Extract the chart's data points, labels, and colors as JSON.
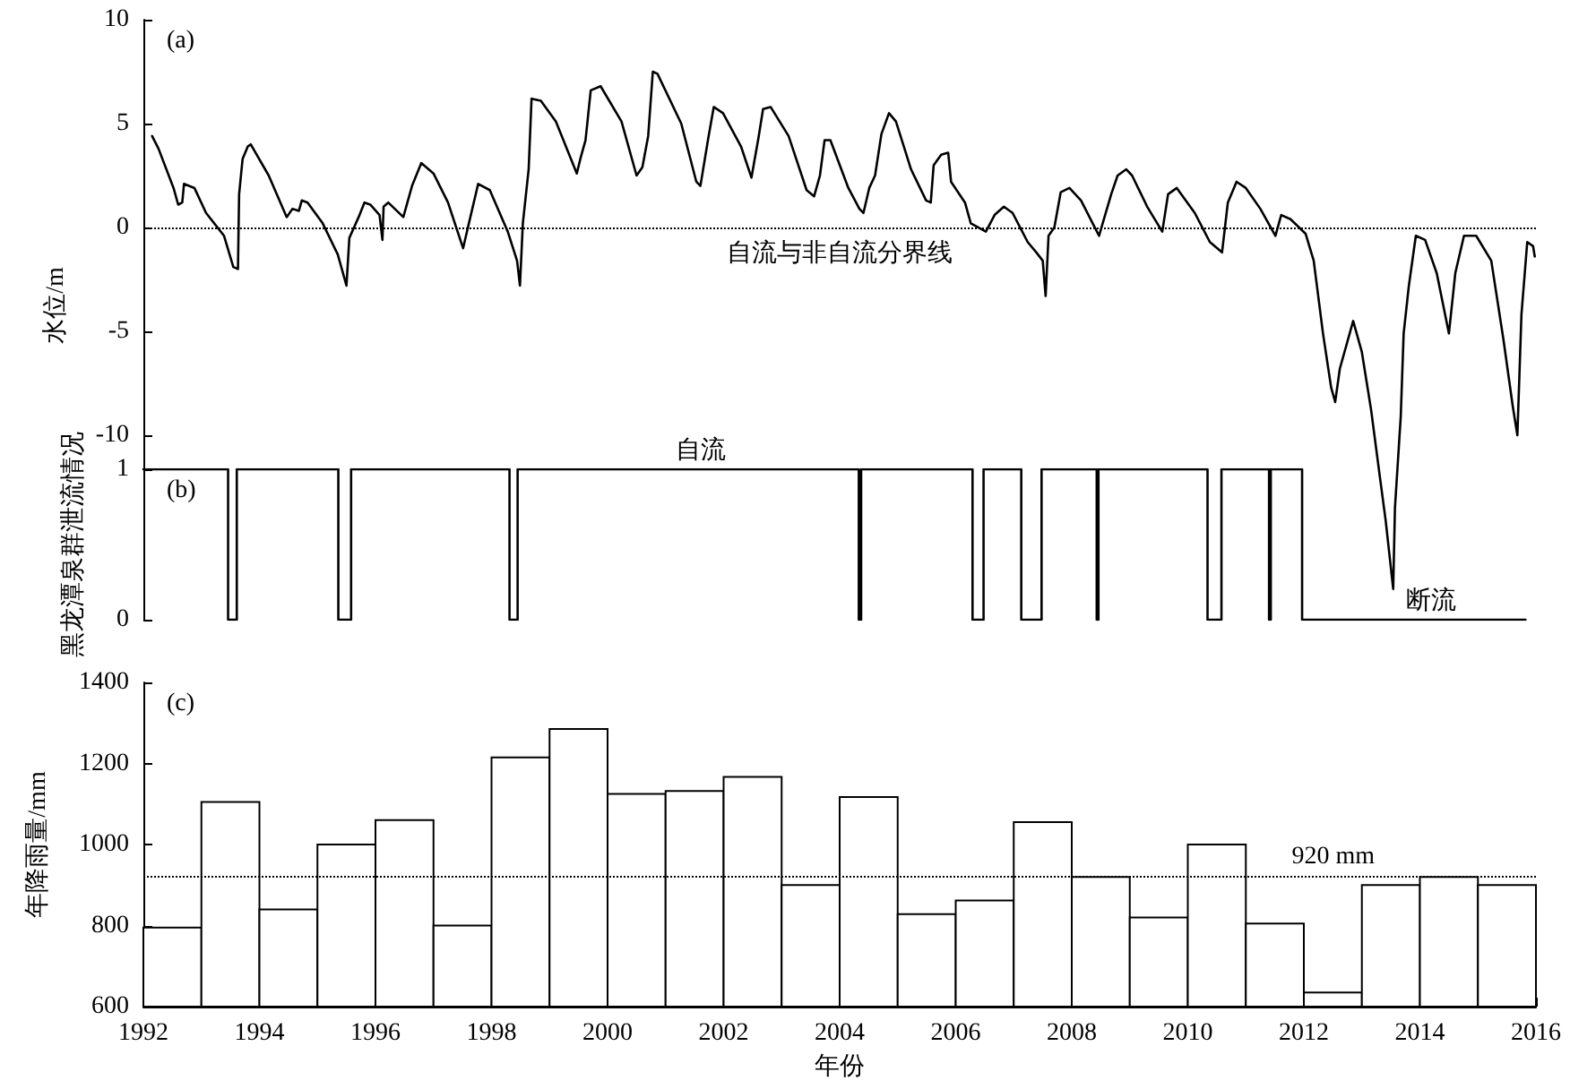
{
  "chart_data": [
    {
      "type": "line",
      "title": "(a)",
      "ylabel": "水位/m",
      "xlim": [
        1992,
        2016
      ],
      "ylim": [
        -17.5,
        10
      ],
      "yticks": [
        -10,
        -5,
        0,
        5,
        10
      ],
      "tick_labels": "y",
      "grid": false,
      "marker": "none",
      "line_style": "solid",
      "ref_lines": [
        {
          "axis": "y",
          "value": 0,
          "label": "自流与非自流分界线",
          "color": "#000000",
          "line_style": "dotted"
        }
      ],
      "series": [
        {
          "color": "#000000",
          "x": [
            1992.15,
            1992.26,
            1992.52,
            1992.6,
            1992.67,
            1992.7,
            1992.88,
            1993.08,
            1993.39,
            1993.55,
            1993.63,
            1993.65,
            1993.71,
            1993.8,
            1993.85,
            1994.16,
            1994.47,
            1994.57,
            1994.68,
            1994.73,
            1994.83,
            1995.09,
            1995.35,
            1995.5,
            1995.55,
            1995.71,
            1995.81,
            1995.91,
            1996.07,
            1996.12,
            1996.14,
            1996.22,
            1996.48,
            1996.63,
            1996.79,
            1997.0,
            1997.25,
            1997.51,
            1997.61,
            1997.77,
            1997.97,
            1998.28,
            1998.44,
            1998.49,
            1998.54,
            1998.64,
            1998.69,
            1998.85,
            1999.11,
            1999.47,
            1999.54,
            1999.62,
            1999.71,
            1999.88,
            2000.24,
            2000.5,
            2000.6,
            2000.7,
            2000.78,
            2000.86,
            2001.27,
            2001.53,
            2001.6,
            2001.73,
            2001.83,
            2001.99,
            2002.3,
            2002.48,
            2002.6,
            2002.68,
            2002.81,
            2003.12,
            2003.43,
            2003.56,
            2003.66,
            2003.74,
            2003.84,
            2004.15,
            2004.34,
            2004.41,
            2004.51,
            2004.61,
            2004.72,
            2004.85,
            2004.97,
            2005.23,
            2005.49,
            2005.57,
            2005.62,
            2005.75,
            2005.87,
            2005.92,
            2006.16,
            2006.26,
            2006.52,
            2006.67,
            2006.83,
            2006.98,
            2007.24,
            2007.39,
            2007.5,
            2007.55,
            2007.6,
            2007.7,
            2007.81,
            2007.96,
            2008.16,
            2008.47,
            2008.68,
            2008.79,
            2008.94,
            2009.04,
            2009.3,
            2009.56,
            2009.66,
            2009.81,
            2010.12,
            2010.38,
            2010.59,
            2010.69,
            2010.84,
            2011.0,
            2011.25,
            2011.51,
            2011.61,
            2011.77,
            2012.03,
            2012.17,
            2012.33,
            2012.47,
            2012.54,
            2012.62,
            2012.85,
            2013.0,
            2013.16,
            2013.31,
            2013.41,
            2013.54,
            2013.57,
            2013.67,
            2013.72,
            2013.81,
            2013.93,
            2014.09,
            2014.29,
            2014.5,
            2014.61,
            2014.76,
            2014.97,
            2015.23,
            2015.44,
            2015.6,
            2015.68,
            2015.75,
            2015.85,
            2015.95,
            2015.98
          ],
          "values": [
            4.4,
            3.8,
            1.9,
            1.1,
            1.2,
            2.1,
            1.9,
            0.7,
            -0.4,
            -1.9,
            -2.0,
            1.6,
            3.3,
            3.9,
            4.0,
            2.5,
            0.5,
            0.9,
            0.8,
            1.3,
            1.2,
            0.2,
            -1.3,
            -2.8,
            -0.5,
            0.5,
            1.2,
            1.1,
            0.6,
            -0.6,
            1.0,
            1.2,
            0.5,
            2.0,
            3.1,
            2.6,
            1.2,
            -1.0,
            0.2,
            2.1,
            1.8,
            -0.2,
            -1.6,
            -2.8,
            0.2,
            2.8,
            6.2,
            6.1,
            5.1,
            2.6,
            3.4,
            4.2,
            6.6,
            6.8,
            5.1,
            2.5,
            2.9,
            4.4,
            7.5,
            7.4,
            5.0,
            2.2,
            2.0,
            4.2,
            5.8,
            5.5,
            3.9,
            2.4,
            4.3,
            5.7,
            5.8,
            4.4,
            1.8,
            1.5,
            2.5,
            4.2,
            4.2,
            1.9,
            0.9,
            0.7,
            1.9,
            2.5,
            4.5,
            5.5,
            5.1,
            2.8,
            1.3,
            1.2,
            3.0,
            3.5,
            3.6,
            2.2,
            1.2,
            0.2,
            -0.2,
            0.6,
            1.0,
            0.7,
            -0.7,
            -1.2,
            -1.6,
            -3.3,
            -0.4,
            0.0,
            1.7,
            1.9,
            1.3,
            -0.4,
            1.6,
            2.5,
            2.8,
            2.5,
            1.0,
            -0.2,
            1.6,
            1.9,
            0.7,
            -0.7,
            -1.2,
            1.2,
            2.2,
            1.9,
            0.9,
            -0.4,
            0.6,
            0.4,
            -0.3,
            -1.6,
            -5.1,
            -7.7,
            -8.4,
            -6.8,
            -4.5,
            -6.0,
            -8.8,
            -12.0,
            -14.1,
            -17.4,
            -13.5,
            -9.1,
            -5.1,
            -2.8,
            -0.4,
            -0.6,
            -2.2,
            -5.1,
            -2.2,
            -0.4,
            -0.4,
            -1.6,
            -5.4,
            -8.6,
            -10.0,
            -4.2,
            -0.7,
            -0.9,
            -1.4
          ]
        }
      ]
    },
    {
      "type": "step",
      "title": "(b)",
      "ylabel": "黑龙潭泉群泄流情况",
      "xlim": [
        1992,
        2016
      ],
      "ylim": [
        0,
        1
      ],
      "yticks": [
        0,
        1
      ],
      "tick_labels": "y",
      "grid": false,
      "marker": "none",
      "annotations": [
        {
          "text": "自流",
          "x": 2001.6,
          "y": 1
        },
        {
          "text": "断流",
          "x": 2014.2,
          "y": 0
        }
      ],
      "series": [
        {
          "color": "#000000",
          "x": [
            1992,
            1993.46,
            1993.61,
            1995.36,
            1995.58,
            1998.31,
            1998.45,
            2004.33,
            2004.37,
            2006.29,
            2006.48,
            2007.13,
            2007.48,
            2008.43,
            2008.46,
            2010.34,
            2010.58,
            2011.4,
            2011.43,
            2011.97,
            2015.82
          ],
          "values": [
            1,
            0,
            1,
            0,
            1,
            0,
            1,
            0,
            1,
            0,
            1,
            0,
            1,
            0,
            1,
            0,
            1,
            0,
            1,
            0,
            0
          ]
        }
      ]
    },
    {
      "type": "histogram",
      "title": "(c)",
      "xlabel": "年份",
      "ylabel": "年降雨量/mm",
      "xlim": [
        1992,
        2016
      ],
      "xticks": [
        1992,
        1994,
        1996,
        1998,
        2000,
        2002,
        2004,
        2006,
        2008,
        2010,
        2012,
        2014,
        2016
      ],
      "ylim": [
        600,
        1400
      ],
      "yticks": [
        600,
        800,
        1000,
        1200,
        1400
      ],
      "grid": false,
      "color": "#ffffff",
      "ref_lines": [
        {
          "axis": "y",
          "value": 920,
          "label": "920 mm",
          "color": "#000000",
          "line_style": "dotted"
        }
      ],
      "bins": [
        1992,
        1993,
        1994,
        1995,
        1996,
        1997,
        1998,
        1999,
        2000,
        2001,
        2002,
        2003,
        2004,
        2005,
        2006,
        2007,
        2008,
        2009,
        2010,
        2011,
        2012,
        2013,
        2014,
        2015,
        2016
      ],
      "values": [
        795,
        1105,
        840,
        1000,
        1060,
        800,
        1215,
        1285,
        1125,
        1132,
        1167,
        900,
        1117,
        828,
        862,
        1055,
        920,
        820,
        1000,
        805,
        635,
        900,
        920,
        900
      ]
    }
  ]
}
